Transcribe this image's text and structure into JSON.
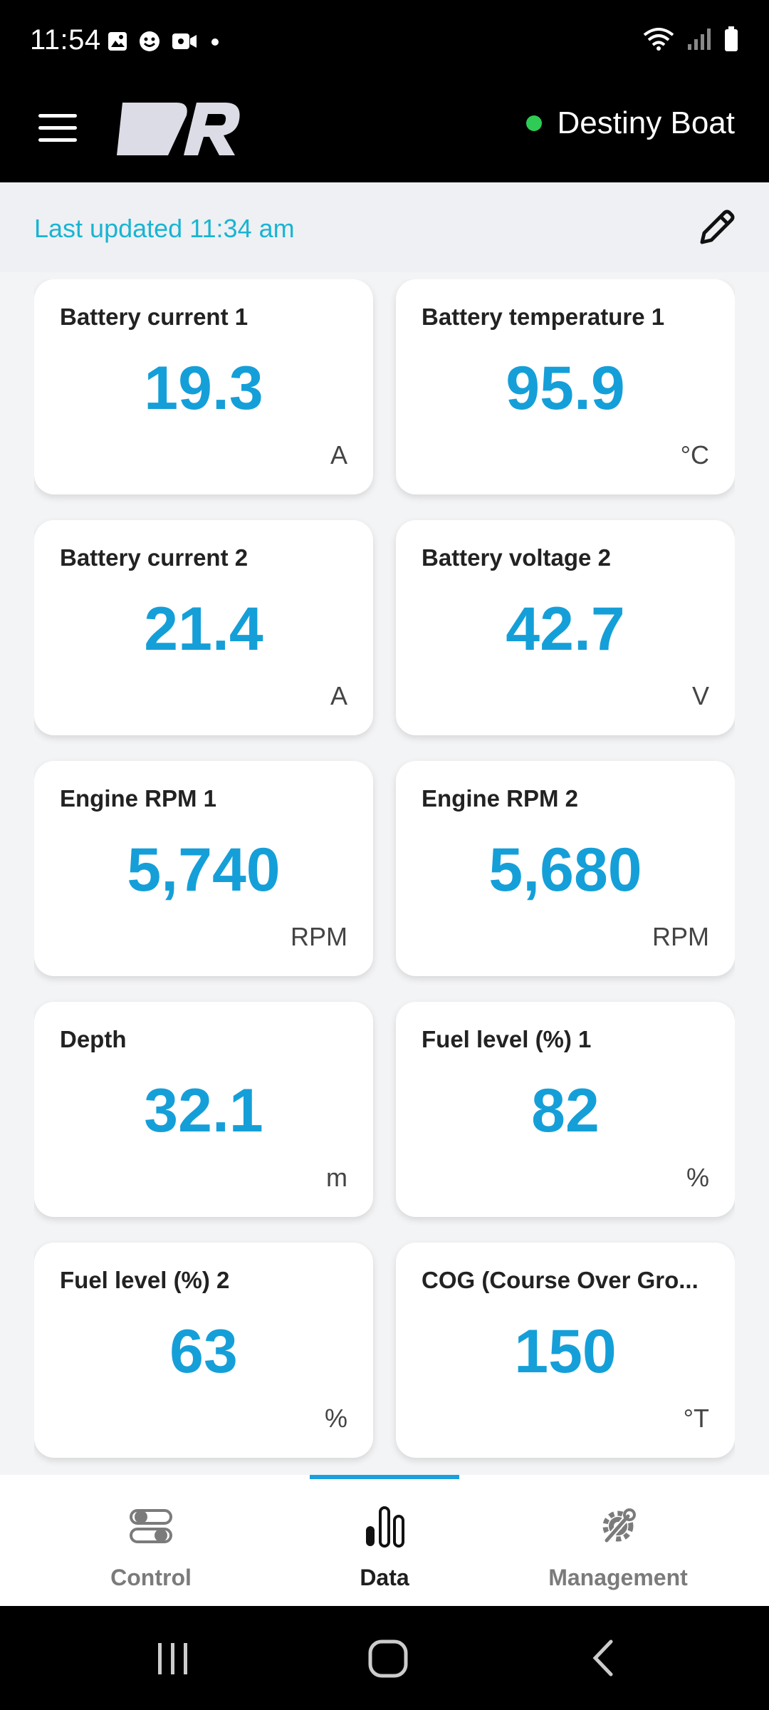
{
  "status_bar": {
    "time": "11:54"
  },
  "header": {
    "boat_name": "Destiny Boat",
    "connection_color": "#2ecc55"
  },
  "update_bar": {
    "last_updated": "Last updated 11:34 am"
  },
  "cards": [
    {
      "title": "Battery current 1",
      "value": "19.3",
      "unit": "A"
    },
    {
      "title": "Battery temperature 1",
      "value": "95.9",
      "unit": "°C"
    },
    {
      "title": "Battery current 2",
      "value": "21.4",
      "unit": "A"
    },
    {
      "title": "Battery voltage 2",
      "value": "42.7",
      "unit": "V"
    },
    {
      "title": "Engine RPM 1",
      "value": "5,740",
      "unit": "RPM"
    },
    {
      "title": "Engine RPM 2",
      "value": "5,680",
      "unit": "RPM"
    },
    {
      "title": "Depth",
      "value": "32.1",
      "unit": "m"
    },
    {
      "title": "Fuel level (%) 1",
      "value": "82",
      "unit": "%"
    },
    {
      "title": "Fuel level (%) 2",
      "value": "63",
      "unit": "%"
    },
    {
      "title": "COG (Course Over Gro...",
      "value": "150",
      "unit": "°T"
    }
  ],
  "bottom_nav": {
    "items": [
      {
        "label": "Control",
        "icon": "toggle-icon"
      },
      {
        "label": "Data",
        "icon": "bar-chart-icon"
      },
      {
        "label": "Management",
        "icon": "gear-wrench-icon"
      }
    ],
    "active": "Data"
  },
  "colors": {
    "accent": "#159fd8",
    "updated_text": "#19b4d2"
  }
}
